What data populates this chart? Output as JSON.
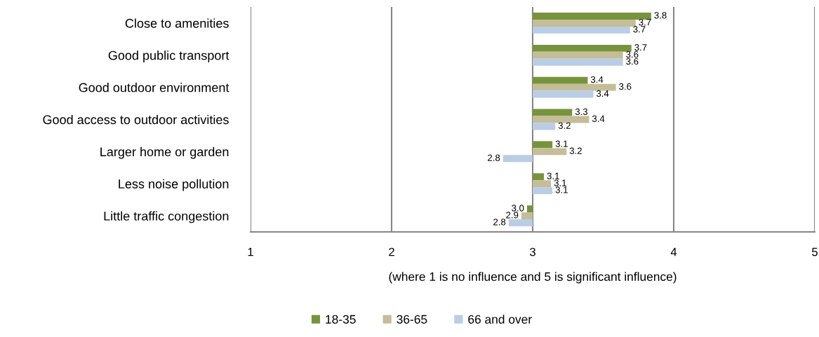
{
  "chart_data": {
    "type": "bar",
    "orientation": "horizontal",
    "xlabel": "(where 1 is no influence and 5 is significant influence)",
    "categories": [
      "Close to amenities",
      "Good public transport",
      "Good outdoor environment",
      "Good access to outdoor activities",
      "Larger home or garden",
      "Less noise pollution",
      "Little traffic congestion"
    ],
    "series": [
      {
        "name": "18-35",
        "color": "#77933c",
        "base": [
          3,
          3,
          3,
          3,
          3,
          3,
          3
        ],
        "values": [
          0.84,
          0.7,
          0.39,
          0.28,
          0.14,
          0.08,
          -0.04
        ],
        "value_labels": [
          "3.8",
          "3.7",
          "3.4",
          "3.3",
          "3.1",
          "3.1",
          "3.0"
        ]
      },
      {
        "name": "36-65",
        "color": "#c4bd97",
        "base": [
          3,
          3,
          3,
          3,
          3,
          3,
          3
        ],
        "values": [
          0.73,
          0.64,
          0.59,
          0.4,
          0.24,
          0.13,
          -0.08
        ],
        "value_labels": [
          "3.7",
          "3.6",
          "3.6",
          "3.4",
          "3.2",
          "3.1",
          "2.9"
        ]
      },
      {
        "name": "66 and over",
        "color": "#b9cde5",
        "base": [
          3,
          3,
          3,
          3,
          3,
          3,
          3
        ],
        "values": [
          0.69,
          0.64,
          0.43,
          0.16,
          -0.21,
          0.14,
          -0.17
        ],
        "value_labels": [
          "3.7",
          "3.6",
          "3.4",
          "3.2",
          "2.8",
          "3.1",
          "2.8"
        ]
      }
    ],
    "xlim": [
      1,
      5
    ],
    "xticks": [
      1,
      2,
      3,
      4,
      5
    ],
    "grid": "x",
    "legend": "bottom"
  }
}
